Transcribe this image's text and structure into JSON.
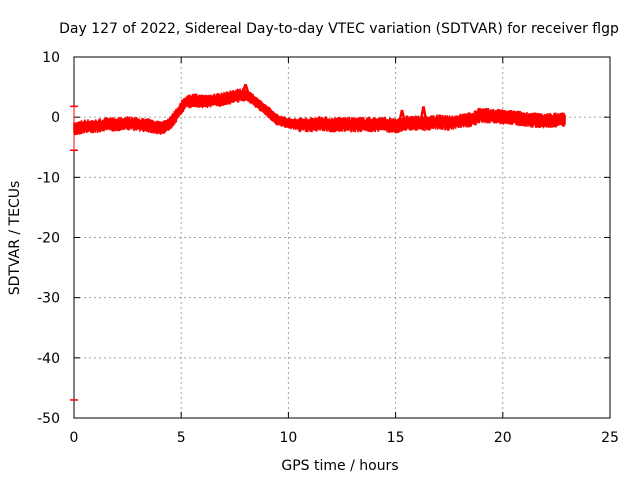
{
  "chart_data": {
    "type": "line",
    "title": "Day 127 of 2022, Sidereal Day-to-day VTEC variation (SDTVAR) for receiver flgp",
    "xlabel": "GPS time / hours",
    "ylabel": "SDTVAR / TECUs",
    "xlim": [
      0,
      25
    ],
    "ylim": [
      -50,
      10
    ],
    "xticks": [
      0,
      5,
      10,
      15,
      20,
      25
    ],
    "yticks": [
      10,
      0,
      -10,
      -20,
      -30,
      -40,
      -50
    ],
    "grid": true,
    "series_color": "#ff0000",
    "series": [
      {
        "name": "SDTVAR",
        "x": [
          0,
          0.5,
          1,
          1.5,
          2,
          2.5,
          3,
          3.5,
          4,
          4.3,
          4.6,
          4.9,
          5.2,
          5.6,
          6,
          6.5,
          7,
          7.5,
          8,
          8.5,
          9,
          9.5,
          10,
          10.5,
          11,
          11.5,
          12,
          12.5,
          13,
          13.5,
          14,
          14.5,
          15,
          15.5,
          16,
          16.5,
          17,
          17.5,
          18,
          18.5,
          19,
          19.5,
          20,
          20.5,
          21,
          21.5,
          22,
          22.5,
          22.9
        ],
        "y": [
          -2,
          -1.5,
          -1.5,
          -1.2,
          -1.2,
          -1,
          -1.2,
          -1.4,
          -1.8,
          -1.5,
          -0.5,
          1,
          2.5,
          2.8,
          2.6,
          2.8,
          3,
          3.5,
          3.8,
          2.5,
          1,
          -0.5,
          -1,
          -1.2,
          -1.3,
          -1,
          -1.3,
          -1.2,
          -1.3,
          -1.2,
          -1.2,
          -1.2,
          -1.5,
          -1,
          -1,
          -1,
          -0.8,
          -1,
          -0.7,
          -0.4,
          0.3,
          0.2,
          0,
          -0.1,
          -0.3,
          -0.5,
          -0.6,
          -0.5,
          -0.4
        ]
      }
    ],
    "band": [
      {
        "x": [
          0,
          1,
          3,
          3.5,
          5.5,
          8
        ],
        "half_width": 1.2
      },
      {
        "x": [
          8,
          9.5,
          10.5
        ],
        "half_width": 1.0
      },
      {
        "x": [
          10.5,
          15,
          16.5,
          17,
          19,
          22.9
        ],
        "half_width": 1.3
      }
    ],
    "spikes": [
      {
        "x": 8.0,
        "y_top": 5.5
      },
      {
        "x": 15.3,
        "y_top": 1.2
      },
      {
        "x": 16.3,
        "y_top": 1.8
      },
      {
        "x": 18.9,
        "y_top": 1.5
      }
    ],
    "left_markers": [
      1.8,
      -5.5,
      -47
    ]
  }
}
